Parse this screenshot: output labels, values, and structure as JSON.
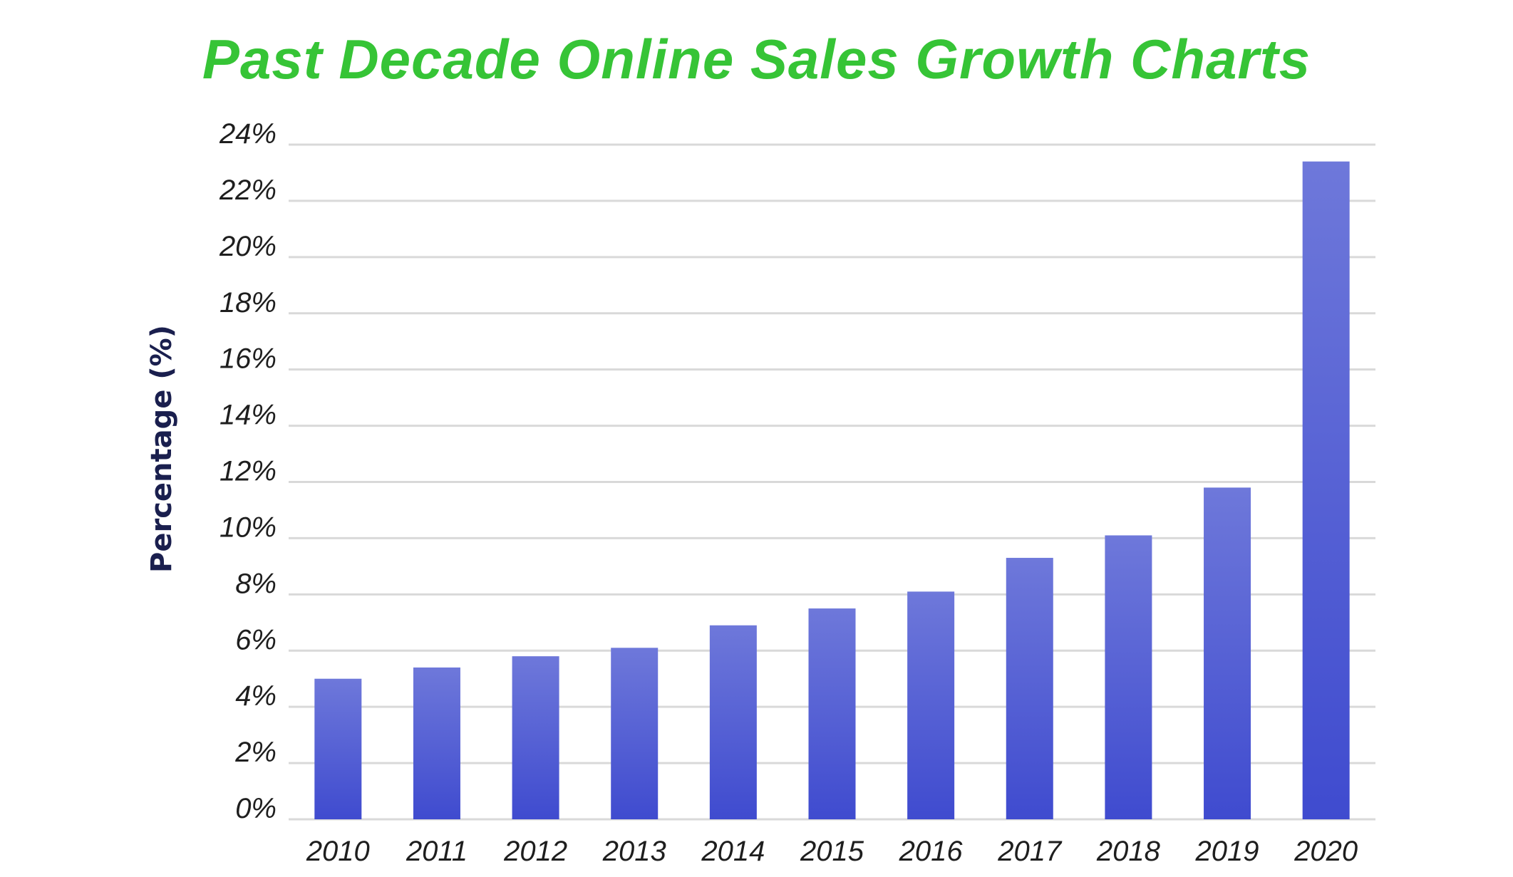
{
  "chart_data": {
    "type": "bar",
    "title": "Past Decade Online Sales Growth Charts",
    "xlabel": "",
    "ylabel": "Percentage (%)",
    "categories": [
      "2010",
      "2011",
      "2012",
      "2013",
      "2014",
      "2015",
      "2016",
      "2017",
      "2018",
      "2019",
      "2020"
    ],
    "values": [
      5.0,
      5.4,
      5.8,
      6.1,
      6.9,
      7.5,
      8.1,
      9.3,
      10.1,
      11.8,
      23.4
    ],
    "ylim": [
      0,
      24
    ],
    "yticks": [
      "0%",
      "2%",
      "4%",
      "6%",
      "8%",
      "10%",
      "12%",
      "14%",
      "16%",
      "18%",
      "20%",
      "22%",
      "24%"
    ],
    "grid": true,
    "legend": "none",
    "colors": {
      "title": "#36c436",
      "bar_top": "#6e78da",
      "bar_bottom": "#3f4bcf",
      "grid": "#d9d9d9",
      "ylabel": "#1a1f4e"
    }
  }
}
